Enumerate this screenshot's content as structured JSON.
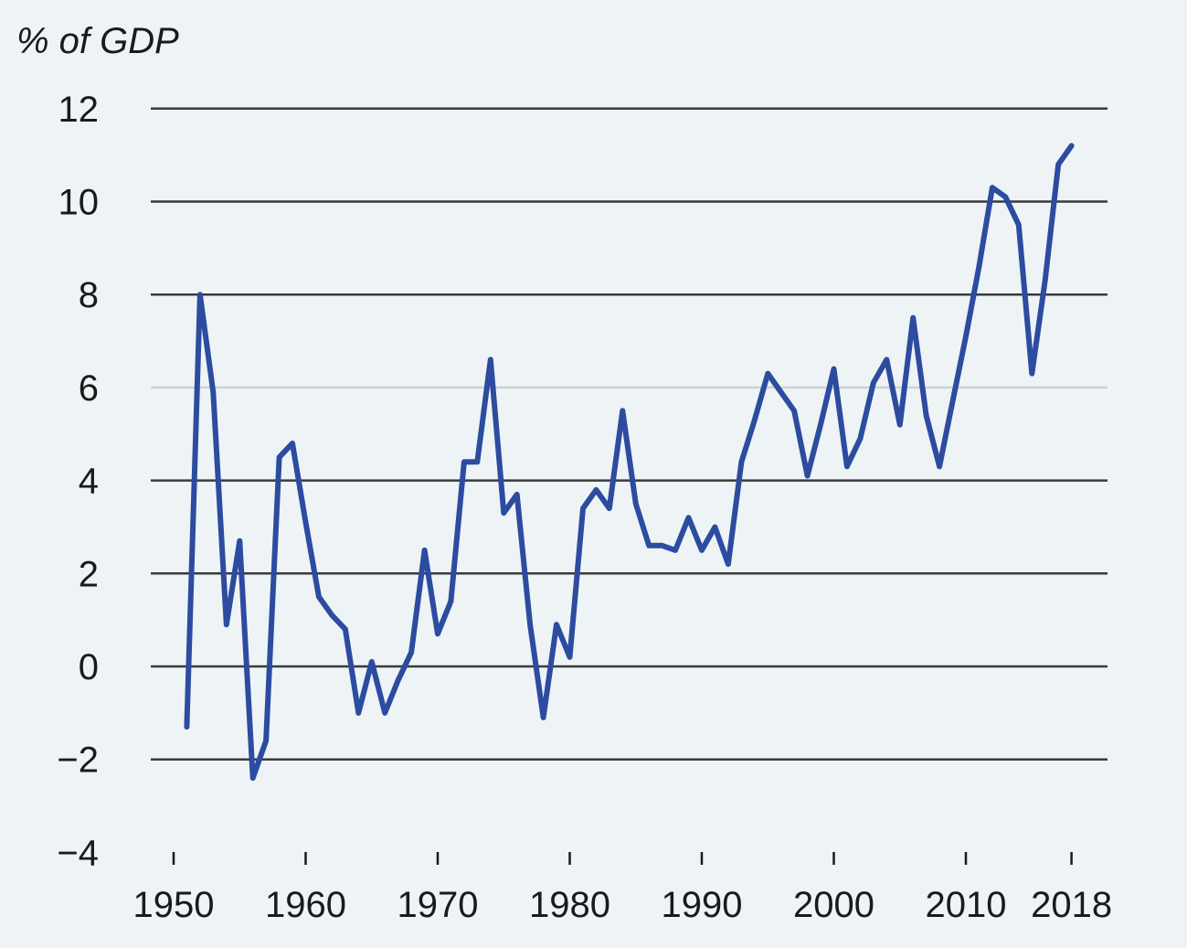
{
  "chart_data": {
    "type": "line",
    "title": "",
    "ylabel": "% of GDP",
    "xlabel": "",
    "ylim": [
      -4,
      12
    ],
    "xlim": [
      1950,
      2018
    ],
    "yticks": [
      12,
      10,
      8,
      6,
      4,
      2,
      0,
      -2,
      -4
    ],
    "ytick_labels": [
      "12",
      "10",
      "8",
      "6",
      "4",
      "2",
      "0",
      "−2",
      "−4"
    ],
    "xticks": [
      1950,
      1960,
      1970,
      1980,
      1990,
      2000,
      2010,
      2018
    ],
    "xtick_labels": [
      "1950",
      "1960",
      "1970",
      "1980",
      "1990",
      "2000",
      "2010",
      "2018"
    ],
    "grid": true,
    "colors": {
      "line": "#2b4c9f",
      "grid": "#3a3a3a",
      "background": "#eef3f6"
    },
    "x": [
      1951,
      1952,
      1953,
      1954,
      1955,
      1956,
      1957,
      1958,
      1959,
      1960,
      1961,
      1962,
      1963,
      1964,
      1965,
      1966,
      1967,
      1968,
      1969,
      1970,
      1971,
      1972,
      1973,
      1974,
      1975,
      1976,
      1977,
      1978,
      1979,
      1980,
      1981,
      1982,
      1983,
      1984,
      1985,
      1986,
      1987,
      1988,
      1989,
      1990,
      1991,
      1992,
      1993,
      1994,
      1995,
      1996,
      1997,
      1998,
      1999,
      2000,
      2001,
      2002,
      2003,
      2004,
      2005,
      2006,
      2007,
      2008,
      2009,
      2010,
      2011,
      2012,
      2013,
      2014,
      2015,
      2016,
      2017,
      2018
    ],
    "series": [
      {
        "values": [
          -1.3,
          8.0,
          5.9,
          0.9,
          2.7,
          -2.4,
          -1.6,
          4.5,
          4.8,
          3.1,
          1.5,
          1.1,
          0.8,
          -1.0,
          0.1,
          -1.0,
          -0.3,
          0.3,
          2.5,
          0.7,
          1.4,
          4.4,
          4.4,
          6.6,
          3.3,
          3.7,
          0.9,
          -1.1,
          0.9,
          0.2,
          3.4,
          3.8,
          3.4,
          5.5,
          3.5,
          2.6,
          2.6,
          2.5,
          3.2,
          2.5,
          3.0,
          2.2,
          4.4,
          5.3,
          6.3,
          5.9,
          5.5,
          4.1,
          5.2,
          6.4,
          4.3,
          4.9,
          6.1,
          6.6,
          5.2,
          7.5,
          5.4,
          4.3,
          5.7,
          7.1,
          8.6,
          10.3,
          10.1,
          9.5,
          6.3,
          8.3,
          10.8,
          11.2
        ]
      }
    ]
  }
}
